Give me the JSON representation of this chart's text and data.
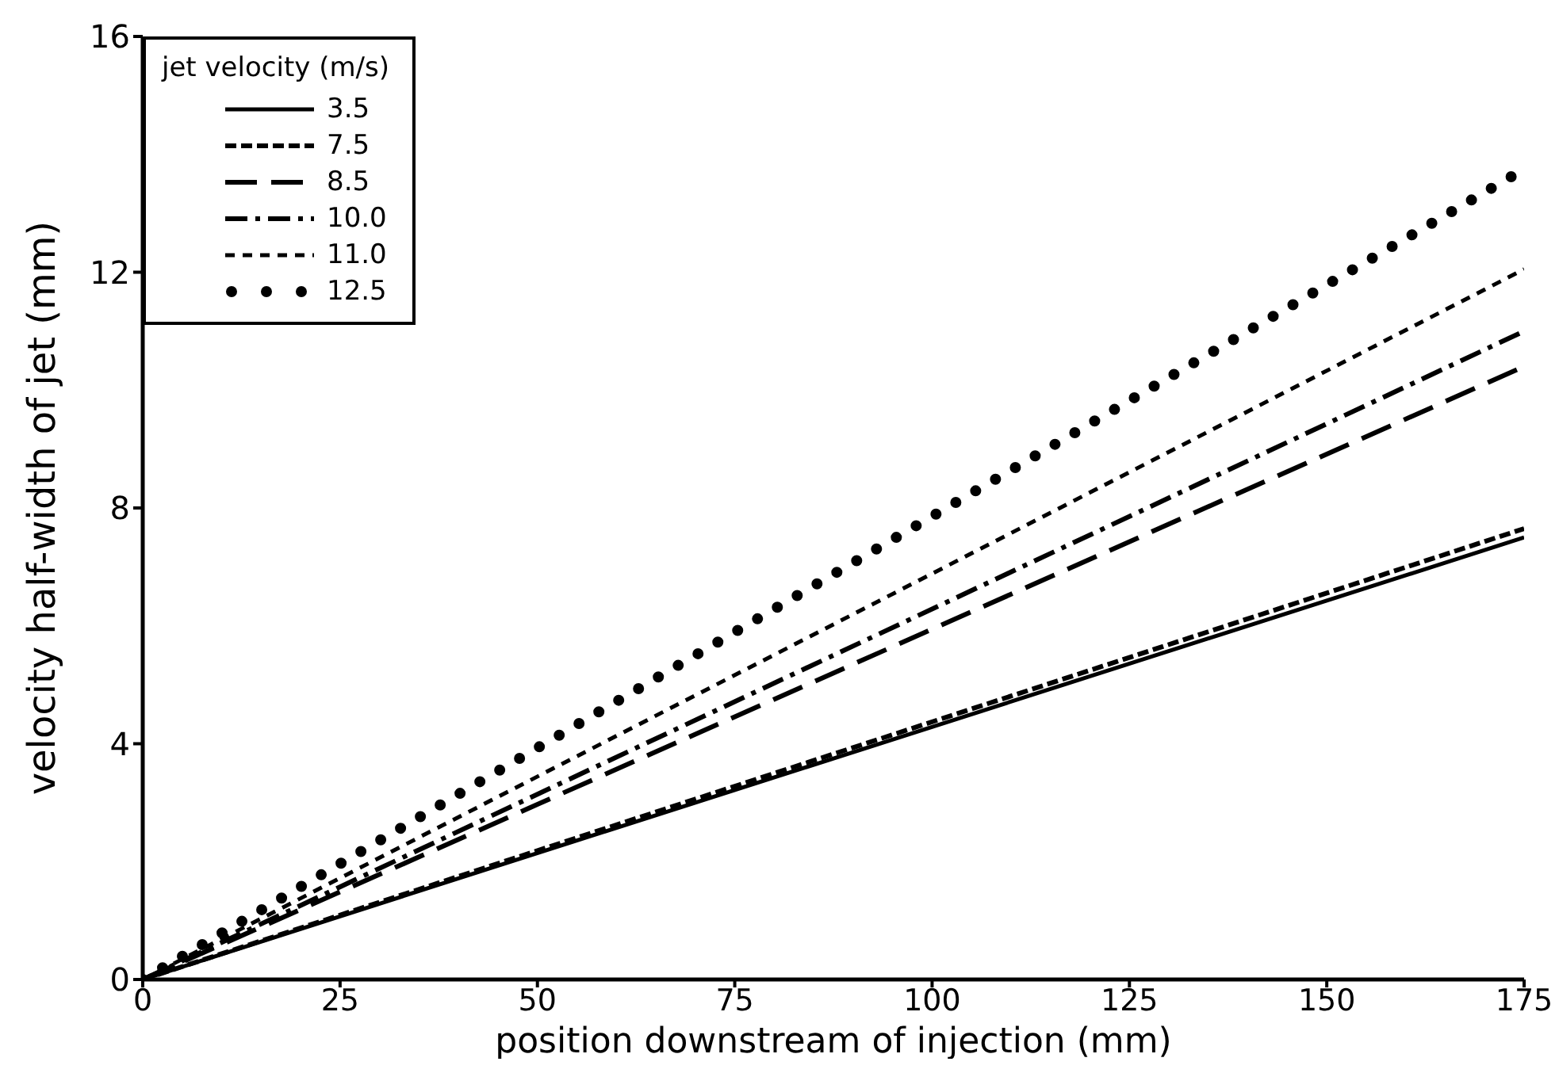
{
  "chart_data": {
    "type": "line",
    "xlabel": "position downstream of injection (mm)",
    "ylabel": "velocity half-width of jet (mm)",
    "legend_title": "jet velocity (m/s)",
    "legend": "top left",
    "grid": false,
    "marker": "none",
    "xlim": [
      0,
      175
    ],
    "xticks": [
      0,
      25,
      50,
      75,
      100,
      125,
      150,
      175
    ],
    "ylim": [
      0,
      16
    ],
    "yticks": [
      0,
      4,
      8,
      12,
      16
    ],
    "x": [
      0,
      175
    ],
    "series": [
      {
        "name": "3.5",
        "color": "#000000",
        "line_style": "solid",
        "values": [
          0,
          7.5
        ]
      },
      {
        "name": "7.5",
        "color": "#000000",
        "line_style": "dashed",
        "values": [
          0,
          7.65
        ]
      },
      {
        "name": "8.5",
        "color": "#000000",
        "line_style": "dashed",
        "values": [
          0,
          10.4
        ]
      },
      {
        "name": "10.0",
        "color": "#000000",
        "line_style": "dashdot",
        "values": [
          0,
          11.0
        ]
      },
      {
        "name": "11.0",
        "color": "#000000",
        "line_style": "dashed",
        "values": [
          0,
          12.05
        ]
      },
      {
        "name": "12.5",
        "color": "#000000",
        "line_style": "dotted",
        "values": [
          0,
          13.75
        ]
      }
    ]
  }
}
